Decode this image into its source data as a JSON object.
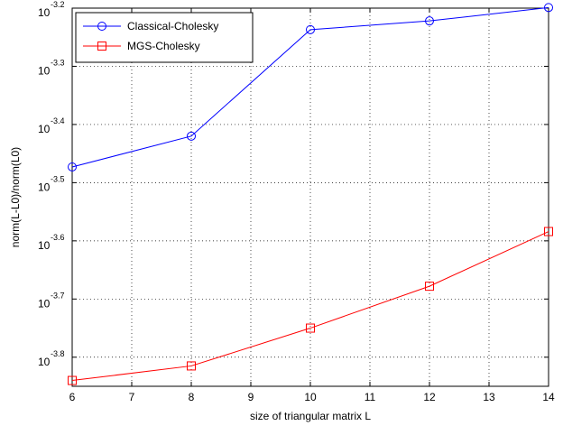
{
  "chart_data": {
    "type": "line",
    "title": "",
    "xlabel": "size of triangular matrix L",
    "ylabel": "norm(L-L0)/norm(L0)",
    "x_scale": "linear",
    "y_scale": "log",
    "xlim": [
      6,
      14
    ],
    "ylim_log10": [
      -3.85,
      -3.2
    ],
    "x_ticks": [
      "6",
      "7",
      "8",
      "9",
      "10",
      "11",
      "12",
      "13",
      "14"
    ],
    "y_ticks": [
      {
        "base": "10",
        "exp": "-3.2",
        "log10": -3.2
      },
      {
        "base": "10",
        "exp": "-3.3",
        "log10": -3.3
      },
      {
        "base": "10",
        "exp": "-3.4",
        "log10": -3.4
      },
      {
        "base": "10",
        "exp": "-3.5",
        "log10": -3.5
      },
      {
        "base": "10",
        "exp": "-3.6",
        "log10": -3.6
      },
      {
        "base": "10",
        "exp": "-3.7",
        "log10": -3.7
      },
      {
        "base": "10",
        "exp": "-3.8",
        "log10": -3.8
      }
    ],
    "grid": true,
    "legend_position": "top-left",
    "x": [
      6,
      8,
      10,
      12,
      14
    ],
    "series": [
      {
        "name": "Classical-Cholesky",
        "color": "#0000ff",
        "marker": "circle",
        "log10_values": [
          -3.473,
          -3.42,
          -3.237,
          -3.222,
          -3.199
        ]
      },
      {
        "name": "MGS-Cholesky",
        "color": "#ff0000",
        "marker": "square",
        "log10_values": [
          -3.84,
          -3.815,
          -3.75,
          -3.678,
          -3.584
        ]
      }
    ]
  }
}
